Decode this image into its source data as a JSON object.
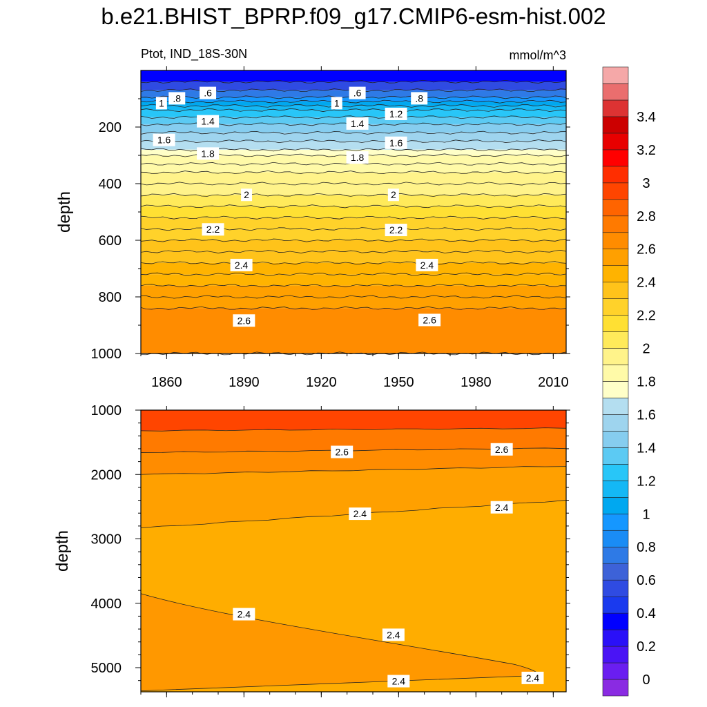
{
  "figure": {
    "title": "b.e21.BHIST_BPRP.f09_g17.CMIP6-esm-hist.002",
    "left_subtitle": "Ptot, IND_18S-30N",
    "right_subtitle": "mmol/m^3"
  },
  "colorbar": {
    "levels": [
      -0.1,
      0,
      0.1,
      0.2,
      0.3,
      0.4,
      0.5,
      0.6,
      0.7,
      0.8,
      0.9,
      1.0,
      1.1,
      1.2,
      1.3,
      1.4,
      1.5,
      1.6,
      1.7,
      1.8,
      1.9,
      2.0,
      2.1,
      2.2,
      2.3,
      2.4,
      2.5,
      2.6,
      2.7,
      2.8,
      2.9,
      3.0,
      3.1,
      3.2,
      3.3,
      3.4,
      3.5,
      3.6
    ],
    "colors": [
      "#8a2be2",
      "#6a1ef0",
      "#4a14f5",
      "#2a10f8",
      "#0000ff",
      "#1a3aee",
      "#2f4be2",
      "#3d62d8",
      "#2e7ae6",
      "#1a8cf5",
      "#1597ff",
      "#00a8f0",
      "#14b8f5",
      "#28c6f8",
      "#5ccaf3",
      "#86cdef",
      "#9ed4ee",
      "#b4def0",
      "#ffffc8",
      "#fffaa8",
      "#fff38a",
      "#ffea5a",
      "#ffe033",
      "#ffd22a",
      "#ffc31a",
      "#ffb300",
      "#ffa000",
      "#ff8c00",
      "#ff7a00",
      "#ff6400",
      "#ff4500",
      "#ff2e00",
      "#ff0000",
      "#e80000",
      "#cc0000",
      "#dd3333",
      "#ea6e6e",
      "#f5a8a8"
    ],
    "tick_labels": [
      "0",
      "0.2",
      "0.4",
      "0.6",
      "0.8",
      "1",
      "1.2",
      "1.4",
      "1.6",
      "1.8",
      "2",
      "2.2",
      "2.4",
      "2.6",
      "2.8",
      "3",
      "3.2",
      "3.4"
    ]
  },
  "chart_data": [
    {
      "type": "heatmap",
      "panel": "upper",
      "x": [
        1850,
        2014
      ],
      "xlim": [
        1850,
        2015
      ],
      "xticks": [
        1860,
        1890,
        1920,
        1950,
        1980,
        2010
      ],
      "ylabel": "depth",
      "ylim": [
        0,
        1000
      ],
      "y_inverted": true,
      "yticks": [
        200,
        400,
        600,
        800,
        1000
      ],
      "depth_profile": [
        [
          5,
          0.3
        ],
        [
          40,
          0.55
        ],
        [
          70,
          0.75
        ],
        [
          95,
          0.95
        ],
        [
          110,
          1.0
        ],
        [
          125,
          1.1
        ],
        [
          140,
          1.2
        ],
        [
          165,
          1.3
        ],
        [
          190,
          1.4
        ],
        [
          220,
          1.5
        ],
        [
          250,
          1.6
        ],
        [
          280,
          1.7
        ],
        [
          300,
          1.8
        ],
        [
          330,
          1.85
        ],
        [
          360,
          1.9
        ],
        [
          400,
          1.95
        ],
        [
          440,
          2.0
        ],
        [
          480,
          2.1
        ],
        [
          520,
          2.2
        ],
        [
          560,
          2.25
        ],
        [
          600,
          2.3
        ],
        [
          640,
          2.35
        ],
        [
          680,
          2.4
        ],
        [
          720,
          2.45
        ],
        [
          760,
          2.5
        ],
        [
          800,
          2.55
        ],
        [
          840,
          2.6
        ],
        [
          1000,
          2.65
        ]
      ],
      "contour_labels": [
        {
          "text": ".6",
          "x": 1876,
          "depth": 82
        },
        {
          "text": ".8",
          "x": 1864,
          "depth": 101
        },
        {
          "text": "1",
          "x": 1858,
          "depth": 118
        },
        {
          "text": "1.4",
          "x": 1876,
          "depth": 182
        },
        {
          "text": "1.6",
          "x": 1859,
          "depth": 248
        },
        {
          "text": "1.8",
          "x": 1876,
          "depth": 296
        },
        {
          "text": "2",
          "x": 1891,
          "depth": 442
        },
        {
          "text": "2.2",
          "x": 1878,
          "depth": 564
        },
        {
          "text": "2.4",
          "x": 1889,
          "depth": 690
        },
        {
          "text": "2.6",
          "x": 1890,
          "depth": 886
        },
        {
          "text": ".6",
          "x": 1934,
          "depth": 82
        },
        {
          "text": "1",
          "x": 1926,
          "depth": 118
        },
        {
          "text": "1.4",
          "x": 1934,
          "depth": 190
        },
        {
          "text": "1.8",
          "x": 1934,
          "depth": 310
        },
        {
          "text": ".8",
          "x": 1958,
          "depth": 101
        },
        {
          "text": "1.2",
          "x": 1949,
          "depth": 156
        },
        {
          "text": "1.6",
          "x": 1949,
          "depth": 258
        },
        {
          "text": "2",
          "x": 1948,
          "depth": 442
        },
        {
          "text": "2.2",
          "x": 1949,
          "depth": 566
        },
        {
          "text": "2.4",
          "x": 1961,
          "depth": 690
        },
        {
          "text": "2.6",
          "x": 1962,
          "depth": 884
        }
      ]
    },
    {
      "type": "heatmap",
      "panel": "lower",
      "x": [
        1850,
        2014
      ],
      "xlim": [
        1850,
        2015
      ],
      "xticks": [
        1860,
        1890,
        1920,
        1950,
        1980,
        2010
      ],
      "ylabel": "depth",
      "ylim": [
        1000,
        5375
      ],
      "y_inverted": true,
      "yticks": [
        1000,
        2000,
        3000,
        4000,
        5000
      ],
      "regions": [
        {
          "level": 2.9,
          "color": "#ff4500",
          "top_depth": 1000,
          "bottom_depth_start": 1320,
          "bottom_depth_end": 1280
        },
        {
          "level": 2.7,
          "color": "#ff7a00",
          "bottom_depth_start": 1660,
          "bottom_depth_end": 1590
        },
        {
          "level": 2.6,
          "color": "#ff8c00",
          "bottom_depth_start": 2000,
          "bottom_depth_end": 1870
        },
        {
          "level": 2.5,
          "color": "#ffa000",
          "bottom_depth_start": 2830,
          "bottom_depth_end": 2400
        },
        {
          "level": 2.45,
          "color": "#ffad00"
        }
      ],
      "tongue": {
        "level": 2.4,
        "color": "#ff9800",
        "top_depth_start": 3850,
        "top_depth_near_end": 4950,
        "tip_x": 2005,
        "tip_depth": 5120,
        "bottom_depth_start": 5360,
        "bottom_depth_end": 5120
      },
      "contour_labels": [
        {
          "text": "2.6",
          "x": 1928,
          "depth": 1660
        },
        {
          "text": "2.6",
          "x": 1990,
          "depth": 1620
        },
        {
          "text": "2.4",
          "x": 1935,
          "depth": 2620
        },
        {
          "text": "2.4",
          "x": 1990,
          "depth": 2520
        },
        {
          "text": "2.4",
          "x": 1890,
          "depth": 4180
        },
        {
          "text": "2.4",
          "x": 1948,
          "depth": 4500
        },
        {
          "text": "2.4",
          "x": 1950,
          "depth": 5220
        },
        {
          "text": "2.4",
          "x": 2002,
          "depth": 5170
        }
      ]
    }
  ]
}
